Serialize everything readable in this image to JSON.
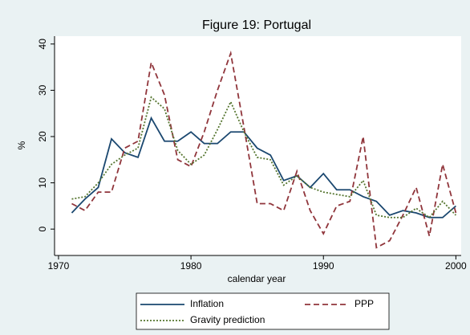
{
  "chart_data": {
    "type": "line",
    "title": "Figure 19: Portugal",
    "x_label": "calendar year",
    "y_label": "%",
    "x": [
      1971,
      1972,
      1973,
      1974,
      1975,
      1976,
      1977,
      1978,
      1979,
      1980,
      1981,
      1982,
      1983,
      1984,
      1985,
      1986,
      1987,
      1988,
      1989,
      1990,
      1991,
      1992,
      1993,
      1994,
      1995,
      1996,
      1997,
      1998,
      1999,
      2000
    ],
    "series": [
      {
        "name": "Inflation",
        "color": "#1a476f",
        "dash": "none",
        "values": [
          3.5,
          6.5,
          9,
          19.5,
          16.5,
          15.5,
          24,
          19,
          19,
          21,
          18.5,
          18.5,
          21,
          21,
          17.5,
          16,
          10.5,
          11.5,
          9,
          12,
          8.5,
          8.5,
          7,
          6,
          3,
          4,
          3.5,
          2.5,
          2.5,
          5
        ]
      },
      {
        "name": "PPP",
        "color": "#90353b",
        "dash": "7 4",
        "values": [
          5.5,
          4,
          8,
          8,
          17.5,
          19,
          36,
          29,
          15,
          13.5,
          21,
          30,
          38,
          22,
          5.5,
          5.5,
          4,
          12.5,
          4,
          -1,
          5,
          6,
          20,
          -4,
          -2.5,
          3,
          9,
          -1.5,
          14,
          3.5
        ]
      },
      {
        "name": "Gravity prediction",
        "color": "#55752f",
        "dash": "2 2",
        "values": [
          6.5,
          7,
          10,
          14,
          16,
          17.5,
          28.5,
          26,
          17,
          14,
          16,
          21.5,
          27.5,
          21,
          15.5,
          15,
          9.5,
          11.5,
          9,
          8,
          7.5,
          7,
          10.5,
          3,
          2.5,
          2.5,
          4.5,
          2.5,
          6,
          3
        ]
      }
    ],
    "xlim": [
      1969.7,
      2000.4
    ],
    "xticks": [
      1970,
      1980,
      1990,
      2000
    ],
    "ylim": [
      -5.7,
      41.7
    ],
    "yticks": [
      0,
      10,
      20,
      30,
      40
    ],
    "legend": "bottom"
  }
}
